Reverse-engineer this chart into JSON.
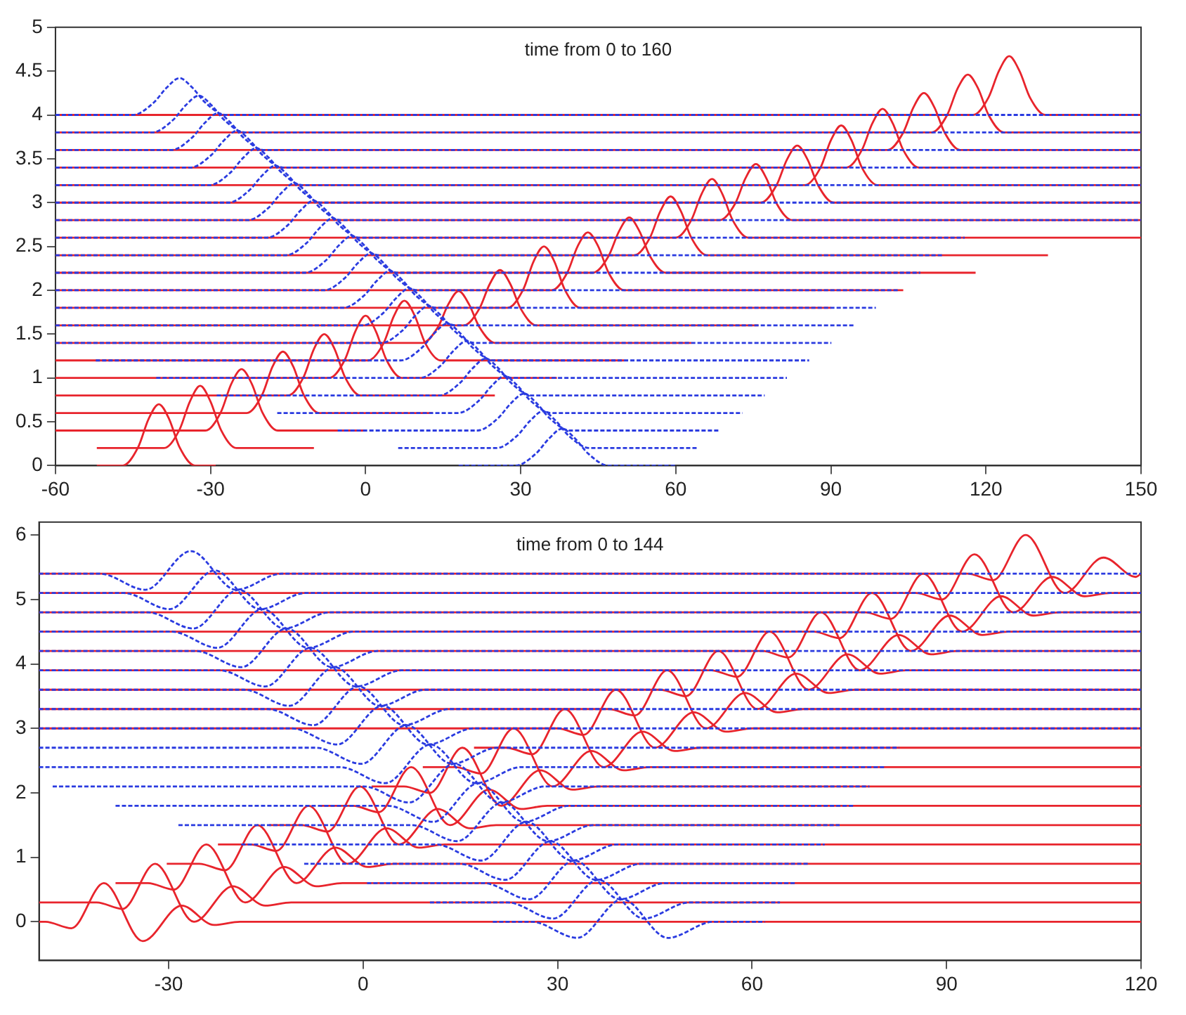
{
  "chart_data": [
    {
      "type": "line",
      "title": "time from 0 to 160",
      "xlim": [
        -60,
        150
      ],
      "xticks": [
        -60,
        -30,
        0,
        30,
        60,
        90,
        120,
        150
      ],
      "ylim": [
        0,
        5
      ],
      "yticks": [
        0,
        0.5,
        1,
        1.5,
        2,
        2.5,
        3,
        3.5,
        4,
        4.5,
        5
      ],
      "series": [
        {
          "color": "#e8242c",
          "x": [
            -52,
            -47,
            -44,
            -42,
            -40,
            -38,
            -36,
            -33,
            -29
          ],
          "values": [
            0,
            0,
            0.21,
            0.53,
            0.7,
            0.53,
            0.21,
            0,
            0
          ]
        },
        {
          "color": "#e8242c",
          "x": [
            -52,
            -39,
            -36,
            -34,
            -32,
            -30,
            -28,
            -25,
            -10
          ],
          "values": [
            0.2,
            0.2,
            0.41,
            0.73,
            0.91,
            0.73,
            0.41,
            0.2,
            0.2
          ]
        },
        {
          "color": "#e8242c",
          "x": [
            -60,
            -31,
            -28,
            -26,
            -24,
            -22,
            -20,
            -17,
            0
          ],
          "values": [
            0.4,
            0.4,
            0.61,
            0.93,
            1.1,
            0.93,
            0.61,
            0.4,
            0.4
          ]
        },
        {
          "color": "#e8242c",
          "x": [
            -60,
            -23,
            -20,
            -18,
            -16,
            -14,
            -12,
            -9,
            13
          ],
          "values": [
            0.6,
            0.6,
            0.81,
            1.13,
            1.3,
            1.13,
            0.81,
            0.6,
            0.6
          ]
        },
        {
          "color": "#e8242c",
          "x": [
            -60,
            -15,
            -12,
            -10,
            -8,
            -6,
            -4,
            -1,
            25
          ],
          "values": [
            0.8,
            0.8,
            1.01,
            1.33,
            1.5,
            1.33,
            1.01,
            0.8,
            0.8
          ]
        },
        {
          "color": "#e8242c",
          "x": [
            -60,
            -7,
            -4,
            -2,
            0,
            2,
            4,
            7,
            37
          ],
          "values": [
            1,
            1,
            1.21,
            1.53,
            1.71,
            1.53,
            1.21,
            1,
            1
          ]
        },
        {
          "color": "#e8242c",
          "x": [
            -60,
            0.5,
            3.5,
            5.5,
            7.5,
            9.5,
            11.5,
            14.5,
            50
          ],
          "values": [
            1.2,
            1.2,
            1.4,
            1.71,
            1.88,
            1.71,
            1.4,
            1.2,
            1.2
          ]
        },
        {
          "color": "#e8242c",
          "x": [
            -60,
            11,
            14,
            16,
            18,
            20,
            22,
            25,
            63
          ],
          "values": [
            1.4,
            1.4,
            1.58,
            1.84,
            1.99,
            1.84,
            1.58,
            1.4,
            1.4
          ]
        },
        {
          "color": "#e8242c",
          "x": [
            -60,
            19,
            22,
            24,
            26,
            28,
            30,
            33,
            76
          ],
          "values": [
            1.6,
            1.6,
            1.79,
            2.07,
            2.23,
            2.07,
            1.79,
            1.6,
            1.6
          ]
        },
        {
          "color": "#e8242c",
          "x": [
            -60,
            27.5,
            30.5,
            32.5,
            34.5,
            36.5,
            38.5,
            41.5,
            90
          ],
          "values": [
            1.8,
            1.8,
            2.01,
            2.33,
            2.5,
            2.33,
            2.01,
            1.8,
            1.8
          ]
        },
        {
          "color": "#e8242c",
          "x": [
            -60,
            36,
            39,
            41,
            43,
            45,
            47,
            50,
            104
          ],
          "values": [
            2,
            2,
            2.2,
            2.5,
            2.66,
            2.5,
            2.2,
            2,
            2
          ]
        },
        {
          "color": "#e8242c",
          "x": [
            -60,
            44,
            47,
            49,
            51,
            53,
            55,
            58,
            118
          ],
          "values": [
            2.2,
            2.2,
            2.39,
            2.67,
            2.83,
            2.67,
            2.39,
            2.2,
            2.2
          ]
        },
        {
          "color": "#e8242c",
          "x": [
            -60,
            52,
            55,
            57,
            59,
            61,
            63,
            66,
            132
          ],
          "values": [
            2.4,
            2.4,
            2.6,
            2.9,
            3.07,
            2.9,
            2.6,
            2.4,
            2.4
          ]
        },
        {
          "color": "#e8242c",
          "x": [
            -60,
            60,
            63,
            65,
            67,
            69,
            71,
            74,
            150
          ],
          "values": [
            2.6,
            2.6,
            2.8,
            3.1,
            3.27,
            3.1,
            2.8,
            2.6,
            2.6
          ]
        },
        {
          "color": "#e8242c",
          "x": [
            -60,
            68.5,
            71.5,
            73.5,
            75.5,
            77.5,
            79.5,
            82.5,
            150
          ],
          "values": [
            2.8,
            2.8,
            2.99,
            3.28,
            3.44,
            3.28,
            2.99,
            2.8,
            2.8
          ]
        },
        {
          "color": "#e8242c",
          "x": [
            -60,
            76.5,
            79.5,
            81.5,
            83.5,
            85.5,
            87.5,
            90.5,
            150
          ],
          "values": [
            3,
            3,
            3.2,
            3.49,
            3.65,
            3.49,
            3.2,
            3,
            3
          ]
        },
        {
          "color": "#e8242c",
          "x": [
            -60,
            85,
            88,
            90,
            92,
            94,
            96,
            99,
            150
          ],
          "values": [
            3.2,
            3.2,
            3.4,
            3.71,
            3.88,
            3.71,
            3.4,
            3.2,
            3.2
          ]
        },
        {
          "color": "#e8242c",
          "x": [
            -60,
            93,
            96,
            98,
            100,
            102,
            104,
            107,
            150
          ],
          "values": [
            3.4,
            3.4,
            3.6,
            3.9,
            4.07,
            3.9,
            3.6,
            3.4,
            3.4
          ]
        },
        {
          "color": "#e8242c",
          "x": [
            -60,
            101,
            104,
            106,
            108,
            110,
            112,
            115,
            150
          ],
          "values": [
            3.6,
            3.6,
            3.8,
            4.09,
            4.25,
            4.09,
            3.8,
            3.6,
            3.6
          ]
        },
        {
          "color": "#e8242c",
          "x": [
            -60,
            109.5,
            112.5,
            114.5,
            116.5,
            118.5,
            120.5,
            123.5,
            150
          ],
          "values": [
            3.8,
            3.8,
            4,
            4.3,
            4.46,
            4.3,
            4,
            3.8,
            3.8
          ]
        },
        {
          "color": "#e8242c",
          "x": [
            -60,
            117.5,
            120.5,
            122.5,
            124.5,
            126.5,
            128.5,
            131.5,
            150
          ],
          "values": [
            4,
            4,
            4.2,
            4.5,
            4.67,
            4.5,
            4.2,
            4,
            4
          ]
        },
        {
          "color": "#2a3be0",
          "line_style": "dotted",
          "x": [
            18,
            29,
            33,
            35.5,
            38,
            40.5,
            43,
            47,
            60
          ],
          "values": [
            0,
            0,
            0.14,
            0.31,
            0.42,
            0.31,
            0.14,
            0,
            0
          ]
        },
        {
          "color": "#2a3be0",
          "line_style": "dotted",
          "x": [
            6.3,
            25.3,
            29.3,
            31.8,
            34.3,
            36.8,
            39.3,
            43.3,
            64.3
          ],
          "values": [
            0.2,
            0.2,
            0.34,
            0.51,
            0.62,
            0.51,
            0.34,
            0.2,
            0.2
          ]
        },
        {
          "color": "#2a3be0",
          "line_style": "dotted",
          "x": [
            -5.4,
            21.6,
            25.6,
            28.1,
            30.6,
            33.1,
            35.6,
            39.6,
            68.6
          ],
          "values": [
            0.4,
            0.4,
            0.54,
            0.71,
            0.82,
            0.71,
            0.54,
            0.4,
            0.4
          ]
        },
        {
          "color": "#2a3be0",
          "line_style": "dotted",
          "x": [
            -17.1,
            17.9,
            21.9,
            24.4,
            26.9,
            29.4,
            31.9,
            35.9,
            72.9
          ],
          "values": [
            0.6,
            0.6,
            0.74,
            0.91,
            1.02,
            0.91,
            0.74,
            0.6,
            0.6
          ]
        },
        {
          "color": "#2a3be0",
          "line_style": "dotted",
          "x": [
            -28.8,
            14.2,
            18.2,
            20.7,
            23.2,
            25.7,
            28.2,
            32.2,
            77.2
          ],
          "values": [
            0.8,
            0.8,
            0.94,
            1.11,
            1.22,
            1.11,
            0.94,
            0.8,
            0.8
          ]
        },
        {
          "color": "#2a3be0",
          "line_style": "dotted",
          "x": [
            -40.5,
            10.5,
            14.5,
            17,
            19.5,
            22,
            24.5,
            28.5,
            81.5
          ],
          "values": [
            1,
            1,
            1.14,
            1.31,
            1.42,
            1.31,
            1.14,
            1,
            1
          ]
        },
        {
          "color": "#2a3be0",
          "line_style": "dotted",
          "x": [
            -52.2,
            6.8,
            10.8,
            13.3,
            15.8,
            18.3,
            20.8,
            24.8,
            85.8
          ],
          "values": [
            1.2,
            1.2,
            1.34,
            1.51,
            1.62,
            1.51,
            1.34,
            1.2,
            1.2
          ]
        },
        {
          "color": "#2a3be0",
          "line_style": "dotted",
          "x": [
            -60,
            3.1,
            7.1,
            9.6,
            12.1,
            14.6,
            17.1,
            21.1,
            90.1
          ],
          "values": [
            1.4,
            1.4,
            1.54,
            1.71,
            1.82,
            1.71,
            1.54,
            1.4,
            1.4
          ]
        },
        {
          "color": "#2a3be0",
          "line_style": "dotted",
          "x": [
            -60,
            -0.6,
            3.4,
            5.9,
            8.4,
            10.9,
            13.4,
            17.4,
            94.4
          ],
          "values": [
            1.6,
            1.6,
            1.74,
            1.91,
            2.02,
            1.91,
            1.74,
            1.6,
            1.6
          ]
        },
        {
          "color": "#2a3be0",
          "line_style": "dotted",
          "x": [
            -60,
            -4.3,
            -0.3,
            2.2,
            4.7,
            7.2,
            9.7,
            13.7,
            98.7
          ],
          "values": [
            1.8,
            1.8,
            1.94,
            2.11,
            2.22,
            2.11,
            1.94,
            1.8,
            1.8
          ]
        },
        {
          "color": "#2a3be0",
          "line_style": "dotted",
          "x": [
            -60,
            -8,
            -4,
            -1.5,
            1,
            3.5,
            6,
            10,
            103
          ],
          "values": [
            2,
            2,
            2.14,
            2.31,
            2.42,
            2.31,
            2.14,
            2,
            2
          ]
        },
        {
          "color": "#2a3be0",
          "line_style": "dotted",
          "x": [
            -60,
            -11.7,
            -7.7,
            -5.2,
            -2.7,
            -0.2,
            2.3,
            6.3,
            107.3
          ],
          "values": [
            2.2,
            2.2,
            2.34,
            2.51,
            2.62,
            2.51,
            2.34,
            2.2,
            2.2
          ]
        },
        {
          "color": "#2a3be0",
          "line_style": "dotted",
          "x": [
            -60,
            -15.4,
            -11.4,
            -8.9,
            -6.4,
            -3.9,
            -1.4,
            2.6,
            111.6
          ],
          "values": [
            2.4,
            2.4,
            2.54,
            2.71,
            2.82,
            2.71,
            2.54,
            2.4,
            2.4
          ]
        },
        {
          "color": "#2a3be0",
          "line_style": "dotted",
          "x": [
            -60,
            -19.1,
            -15.1,
            -12.6,
            -10.1,
            -7.6,
            -5.1,
            -1.1,
            115.9
          ],
          "values": [
            2.6,
            2.6,
            2.74,
            2.91,
            3.02,
            2.91,
            2.74,
            2.6,
            2.6
          ]
        },
        {
          "color": "#2a3be0",
          "line_style": "dotted",
          "x": [
            -60,
            -22.8,
            -18.8,
            -16.3,
            -13.8,
            -11.3,
            -8.8,
            -4.8,
            150
          ],
          "values": [
            2.8,
            2.8,
            2.94,
            3.11,
            3.22,
            3.11,
            2.94,
            2.8,
            2.8
          ]
        },
        {
          "color": "#2a3be0",
          "line_style": "dotted",
          "x": [
            -60,
            -26.5,
            -22.5,
            -20,
            -17.5,
            -15,
            -12.5,
            -8.5,
            150
          ],
          "values": [
            3,
            3,
            3.14,
            3.31,
            3.42,
            3.31,
            3.14,
            3,
            3
          ]
        },
        {
          "color": "#2a3be0",
          "line_style": "dotted",
          "x": [
            -60,
            -30.2,
            -26.2,
            -23.7,
            -21.2,
            -18.7,
            -16.2,
            -12.2,
            150
          ],
          "values": [
            3.2,
            3.2,
            3.34,
            3.51,
            3.62,
            3.51,
            3.34,
            3.2,
            3.2
          ]
        },
        {
          "color": "#2a3be0",
          "line_style": "dotted",
          "x": [
            -60,
            -33.9,
            -29.9,
            -27.4,
            -24.9,
            -22.4,
            -19.9,
            -15.9,
            150
          ],
          "values": [
            3.4,
            3.4,
            3.54,
            3.71,
            3.82,
            3.71,
            3.54,
            3.4,
            3.4
          ]
        },
        {
          "color": "#2a3be0",
          "line_style": "dotted",
          "x": [
            -60,
            -37.6,
            -33.6,
            -31.1,
            -28.6,
            -26.1,
            -23.6,
            -19.6,
            150
          ],
          "values": [
            3.6,
            3.6,
            3.74,
            3.91,
            4.02,
            3.91,
            3.74,
            3.6,
            3.6
          ]
        },
        {
          "color": "#2a3be0",
          "line_style": "dotted",
          "x": [
            -60,
            -41.3,
            -37.3,
            -34.8,
            -32.3,
            -29.8,
            -27.3,
            -23.3,
            150
          ],
          "values": [
            3.8,
            3.8,
            3.94,
            4.11,
            4.22,
            4.11,
            3.94,
            3.8,
            3.8
          ]
        },
        {
          "color": "#2a3be0",
          "line_style": "dotted",
          "x": [
            -60,
            -45,
            -41,
            -38.5,
            -36,
            -33.5,
            -31,
            -27,
            150
          ],
          "values": [
            4,
            4,
            4.14,
            4.31,
            4.42,
            4.31,
            4.14,
            4,
            4
          ]
        }
      ]
    },
    {
      "type": "line",
      "title": "time from 0 to 144",
      "xlim": [
        -50,
        120
      ],
      "xticks": [
        -30,
        0,
        30,
        60,
        90,
        120
      ],
      "ylim": [
        -0.6,
        6.2
      ],
      "yticks": [
        0,
        1,
        2,
        3,
        4,
        5,
        6
      ],
      "series": [
        {
          "color": "#e8242c",
          "x": [
            -50,
            -49,
            -45,
            -40,
            -34,
            -28,
            -23,
            -19,
            120
          ],
          "values": [
            0,
            0,
            -0.1,
            0.6,
            -0.3,
            0.25,
            -0.05,
            0,
            0
          ]
        },
        {
          "color": "#e8242c",
          "x": [
            -50,
            -41.1,
            -37.1,
            -32.1,
            -26.1,
            -20.1,
            -15.1,
            -11.1,
            120
          ],
          "values": [
            0.3,
            0.3,
            0.2,
            0.9,
            0,
            0.55,
            0.25,
            0.3,
            0.3
          ]
        },
        {
          "color": "#e8242c",
          "x": [
            -38.2,
            -33.2,
            -29.2,
            -24.2,
            -18.2,
            -12.2,
            -7.2,
            -3.2,
            120
          ],
          "values": [
            0.6,
            0.6,
            0.5,
            1.2,
            0.3,
            0.85,
            0.55,
            0.6,
            0.6
          ]
        },
        {
          "color": "#e8242c",
          "x": [
            -30.3,
            -25.3,
            -21.3,
            -16.3,
            -10.3,
            -4.3,
            0.7,
            4.7,
            120
          ],
          "values": [
            0.9,
            0.9,
            0.8,
            1.5,
            0.6,
            1.15,
            0.85,
            0.9,
            0.9
          ]
        },
        {
          "color": "#e8242c",
          "x": [
            -22.4,
            -17.4,
            -13.4,
            -8.4,
            -2.4,
            3.6,
            8.6,
            12.6,
            120
          ],
          "values": [
            1.2,
            1.2,
            1.1,
            1.8,
            0.9,
            1.45,
            1.15,
            1.2,
            1.2
          ]
        },
        {
          "color": "#e8242c",
          "x": [
            -14.5,
            -9.5,
            -5.5,
            -0.5,
            5.5,
            11.5,
            16.5,
            20.5,
            120
          ],
          "values": [
            1.5,
            1.5,
            1.4,
            2.1,
            1.2,
            1.75,
            1.45,
            1.5,
            1.5
          ]
        },
        {
          "color": "#e8242c",
          "x": [
            -6.6,
            -1.6,
            2.4,
            7.4,
            13.4,
            19.4,
            24.4,
            28.4,
            120
          ],
          "values": [
            1.8,
            1.8,
            1.7,
            2.4,
            1.5,
            2.05,
            1.75,
            1.8,
            1.8
          ]
        },
        {
          "color": "#e8242c",
          "x": [
            1.3,
            6.3,
            10.3,
            15.3,
            21.3,
            27.3,
            32.3,
            36.3,
            120
          ],
          "values": [
            2.1,
            2.1,
            2,
            2.7,
            1.8,
            2.35,
            2.05,
            2.1,
            2.1
          ]
        },
        {
          "color": "#e8242c",
          "x": [
            9.2,
            14.2,
            18.2,
            23.2,
            29.2,
            35.2,
            40.2,
            44.2,
            120
          ],
          "values": [
            2.4,
            2.4,
            2.3,
            3,
            2.1,
            2.65,
            2.35,
            2.4,
            2.4
          ]
        },
        {
          "color": "#e8242c",
          "x": [
            17.1,
            22.1,
            26.1,
            31.1,
            37.1,
            43.1,
            48.1,
            52.1,
            120
          ],
          "values": [
            2.7,
            2.7,
            2.6,
            3.3,
            2.4,
            2.95,
            2.65,
            2.7,
            2.7
          ]
        },
        {
          "color": "#e8242c",
          "x": [
            -50,
            30,
            34,
            39,
            45,
            51,
            56,
            60,
            120
          ],
          "values": [
            3,
            3,
            2.9,
            3.6,
            2.7,
            3.25,
            2.95,
            3,
            3
          ]
        },
        {
          "color": "#e8242c",
          "x": [
            -50,
            37.9,
            41.9,
            46.9,
            52.9,
            58.9,
            63.9,
            67.9,
            120
          ],
          "values": [
            3.3,
            3.3,
            3.2,
            3.9,
            3,
            3.55,
            3.25,
            3.3,
            3.3
          ]
        },
        {
          "color": "#e8242c",
          "x": [
            -50,
            45.8,
            49.8,
            54.8,
            60.8,
            66.8,
            71.8,
            75.8,
            120
          ],
          "values": [
            3.6,
            3.6,
            3.5,
            4.2,
            3.3,
            3.85,
            3.55,
            3.6,
            3.6
          ]
        },
        {
          "color": "#e8242c",
          "x": [
            -50,
            53.7,
            57.7,
            62.7,
            68.7,
            74.7,
            79.7,
            83.7,
            120
          ],
          "values": [
            3.9,
            3.9,
            3.8,
            4.5,
            3.6,
            4.15,
            3.85,
            3.9,
            3.9
          ]
        },
        {
          "color": "#e8242c",
          "x": [
            -50,
            61.6,
            65.6,
            70.6,
            76.6,
            82.6,
            87.6,
            91.6,
            120
          ],
          "values": [
            4.2,
            4.2,
            4.1,
            4.8,
            3.9,
            4.45,
            4.15,
            4.2,
            4.2
          ]
        },
        {
          "color": "#e8242c",
          "x": [
            -50,
            69.5,
            73.5,
            78.5,
            84.5,
            90.5,
            95.5,
            99.5,
            120
          ],
          "values": [
            4.5,
            4.5,
            4.4,
            5.1,
            4.2,
            4.75,
            4.45,
            4.5,
            4.5
          ]
        },
        {
          "color": "#e8242c",
          "x": [
            -50,
            77.4,
            81.4,
            86.4,
            92.4,
            98.4,
            103.4,
            107.4,
            120
          ],
          "values": [
            4.8,
            4.8,
            4.7,
            5.4,
            4.5,
            5.05,
            4.75,
            4.8,
            4.8
          ]
        },
        {
          "color": "#e8242c",
          "x": [
            -50,
            85.3,
            89.3,
            94.3,
            100.3,
            106.3,
            111.3,
            115.3,
            120
          ],
          "values": [
            5.1,
            5.1,
            5,
            5.7,
            4.8,
            5.35,
            5.05,
            5.1,
            5.1
          ]
        },
        {
          "color": "#e8242c",
          "x": [
            -50,
            93.2,
            97.2,
            102.2,
            108.2,
            114.2,
            119.2,
            120
          ],
          "values": [
            5.4,
            5.4,
            5.3,
            6,
            5.1,
            5.65,
            5.35,
            5.4
          ]
        },
        {
          "color": "#2a3be0",
          "line_style": "dotted",
          "x": [
            20,
            26,
            33,
            40,
            47,
            54,
            62
          ],
          "values": [
            0,
            0,
            -0.25,
            0.35,
            -0.25,
            0,
            0
          ]
        },
        {
          "color": "#2a3be0",
          "line_style": "dotted",
          "x": [
            10.3,
            22.3,
            29.3,
            36.3,
            43.3,
            50.3,
            64.3
          ],
          "values": [
            0.3,
            0.3,
            0.05,
            0.65,
            0.05,
            0.3,
            0.3
          ]
        },
        {
          "color": "#2a3be0",
          "line_style": "dotted",
          "x": [
            0.6,
            18.6,
            25.6,
            32.6,
            39.6,
            46.6,
            66.6
          ],
          "values": [
            0.6,
            0.6,
            0.35,
            0.95,
            0.35,
            0.6,
            0.6
          ]
        },
        {
          "color": "#2a3be0",
          "line_style": "dotted",
          "x": [
            -9.1,
            14.9,
            21.9,
            28.9,
            35.9,
            42.9,
            68.9
          ],
          "values": [
            0.9,
            0.9,
            0.65,
            1.25,
            0.65,
            0.9,
            0.9
          ]
        },
        {
          "color": "#2a3be0",
          "line_style": "dotted",
          "x": [
            -18.8,
            11.2,
            18.2,
            25.2,
            32.2,
            39.2,
            71.2
          ],
          "values": [
            1.2,
            1.2,
            0.95,
            1.55,
            0.95,
            1.2,
            1.2
          ]
        },
        {
          "color": "#2a3be0",
          "line_style": "dotted",
          "x": [
            -28.5,
            7.5,
            14.5,
            21.5,
            28.5,
            35.5,
            73.5
          ],
          "values": [
            1.5,
            1.5,
            1.25,
            1.85,
            1.25,
            1.5,
            1.5
          ]
        },
        {
          "color": "#2a3be0",
          "line_style": "dotted",
          "x": [
            -38.2,
            3.8,
            10.8,
            17.8,
            24.8,
            31.8,
            75.8
          ],
          "values": [
            1.8,
            1.8,
            1.55,
            2.15,
            1.55,
            1.8,
            1.8
          ]
        },
        {
          "color": "#2a3be0",
          "line_style": "dotted",
          "x": [
            -47.9,
            0.1,
            7.1,
            14.1,
            21.1,
            28.1,
            78.1
          ],
          "values": [
            2.1,
            2.1,
            1.85,
            2.45,
            1.85,
            2.1,
            2.1
          ]
        },
        {
          "color": "#2a3be0",
          "line_style": "dotted",
          "x": [
            -50,
            -3.6,
            3.4,
            10.4,
            17.4,
            24.4,
            80.4
          ],
          "values": [
            2.4,
            2.4,
            2.15,
            2.75,
            2.15,
            2.4,
            2.4
          ]
        },
        {
          "color": "#2a3be0",
          "line_style": "dotted",
          "x": [
            -50,
            -7.3,
            -0.3,
            6.7,
            13.7,
            20.7,
            82.7
          ],
          "values": [
            2.7,
            2.7,
            2.45,
            3.05,
            2.45,
            2.7,
            2.7
          ]
        },
        {
          "color": "#2a3be0",
          "line_style": "dotted",
          "x": [
            -50,
            -11,
            -4,
            3,
            10,
            17,
            120
          ],
          "values": [
            3,
            3,
            2.75,
            3.35,
            2.75,
            3,
            3
          ]
        },
        {
          "color": "#2a3be0",
          "line_style": "dotted",
          "x": [
            -50,
            -14.7,
            -7.7,
            -0.7,
            6.3,
            13.3,
            120
          ],
          "values": [
            3.3,
            3.3,
            3.05,
            3.65,
            3.05,
            3.3,
            3.3
          ]
        },
        {
          "color": "#2a3be0",
          "line_style": "dotted",
          "x": [
            -50,
            -18.4,
            -11.4,
            -4.4,
            2.6,
            9.6,
            120
          ],
          "values": [
            3.6,
            3.6,
            3.35,
            3.95,
            3.35,
            3.6,
            3.6
          ]
        },
        {
          "color": "#2a3be0",
          "line_style": "dotted",
          "x": [
            -50,
            -22.1,
            -15.1,
            -8.1,
            -1.1,
            5.9,
            120
          ],
          "values": [
            3.9,
            3.9,
            3.65,
            4.25,
            3.65,
            3.9,
            3.9
          ]
        },
        {
          "color": "#2a3be0",
          "line_style": "dotted",
          "x": [
            -50,
            -25.8,
            -18.8,
            -11.8,
            -4.8,
            2.2,
            120
          ],
          "values": [
            4.2,
            4.2,
            3.95,
            4.55,
            3.95,
            4.2,
            4.2
          ]
        },
        {
          "color": "#2a3be0",
          "line_style": "dotted",
          "x": [
            -50,
            -29.5,
            -22.5,
            -15.5,
            -8.5,
            -1.5,
            120
          ],
          "values": [
            4.5,
            4.5,
            4.25,
            4.85,
            4.25,
            4.5,
            4.5
          ]
        },
        {
          "color": "#2a3be0",
          "line_style": "dotted",
          "x": [
            -50,
            -33.2,
            -26.2,
            -19.2,
            -12.2,
            -5.2,
            120
          ],
          "values": [
            4.8,
            4.8,
            4.55,
            5.15,
            4.55,
            4.8,
            4.8
          ]
        },
        {
          "color": "#2a3be0",
          "line_style": "dotted",
          "x": [
            -50,
            -36.9,
            -29.9,
            -22.9,
            -15.9,
            -8.9,
            120
          ],
          "values": [
            5.1,
            5.1,
            4.85,
            5.45,
            4.85,
            5.1,
            5.1
          ]
        },
        {
          "color": "#2a3be0",
          "line_style": "dotted",
          "x": [
            -50,
            -40.6,
            -33.6,
            -26.6,
            -19.6,
            -12.6,
            120
          ],
          "values": [
            5.4,
            5.4,
            5.15,
            5.75,
            5.15,
            5.4,
            5.4
          ]
        }
      ]
    }
  ]
}
